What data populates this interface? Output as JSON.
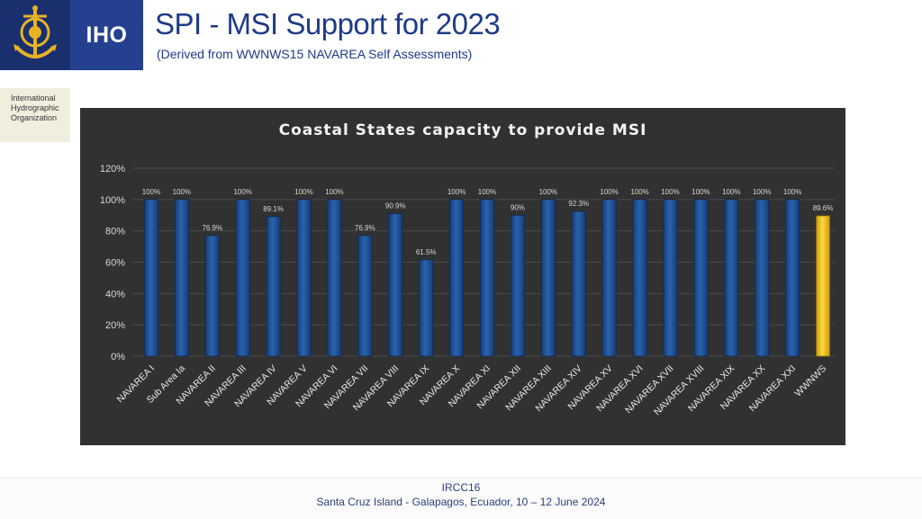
{
  "header": {
    "title": "SPI - MSI Support for 2023",
    "subtitle": "(Derived from WWNWS15 NAVAREA Self Assessments)",
    "iho_label": "IHO",
    "org_name": "International Hydrographic Organization",
    "logo_icon": "anchor-emblem-icon"
  },
  "footer": {
    "line1": "IRCC16",
    "line2": "Santa Cruz Island - Galapagos, Ecuador, 10 – 12 June 2024"
  },
  "colors": {
    "bar": "#1f4f8f",
    "highlight_bar": "#f0c419",
    "panel_bg": "#313131",
    "title_blue": "#1f3a87"
  },
  "chart_data": {
    "type": "bar",
    "title": "Coastal States capacity to provide MSI",
    "xlabel": "",
    "ylabel": "",
    "ylim": [
      0,
      120
    ],
    "yticks": [
      "0%",
      "20%",
      "40%",
      "60%",
      "80%",
      "100%",
      "120%"
    ],
    "grid": true,
    "categories": [
      "NAVAREA I",
      "Sub Area Ia",
      "NAVAREA II",
      "NAVAREA III",
      "NAVAREA IV",
      "NAVAREA V",
      "NAVAREA VI",
      "NAVAREA VII",
      "NAVAREA VIII",
      "NAVAREA IX",
      "NAVAREA X",
      "NAVAREA XI",
      "NAVAREA XII",
      "NAVAREA XIII",
      "NAVAREA XIV",
      "NAVAREA XV",
      "NAVAREA XVI",
      "NAVAREA XVII",
      "NAVAREA XVIII",
      "NAVAREA XIX",
      "NAVAREA XX",
      "NAVAREA XXI",
      "WWNWS"
    ],
    "values": [
      100,
      100,
      76.9,
      100,
      89.1,
      100,
      100,
      76.9,
      90.9,
      61.5,
      100,
      100,
      90,
      100,
      92.3,
      100,
      100,
      100,
      100,
      100,
      100,
      100,
      89.6
    ],
    "data_labels": [
      "100%",
      "100%",
      "76.9%",
      "100%",
      "89.1%",
      "100%",
      "100%",
      "76.9%",
      "90.9%",
      "61.5%",
      "100%",
      "100%",
      "90%",
      "100%",
      "92.3%",
      "100%",
      "100%",
      "100%",
      "100%",
      "100%",
      "100%",
      "100%",
      "89.6%"
    ],
    "highlight_category": "WWNWS"
  }
}
